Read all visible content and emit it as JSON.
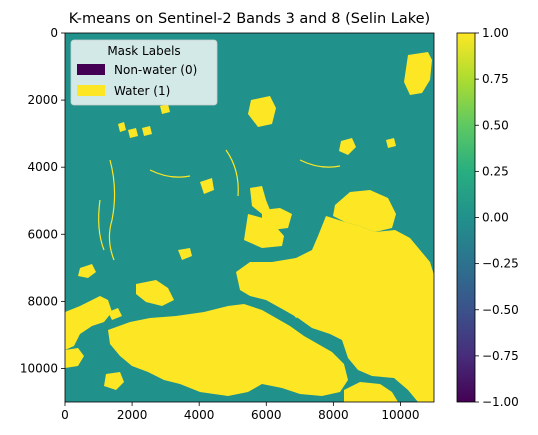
{
  "chart_data": {
    "type": "heatmap",
    "title": "K-means on Sentinel-2 Bands 3 and 8 (Selin Lake)",
    "xlabel": "",
    "ylabel": "",
    "xlim": [
      0,
      11000
    ],
    "ylim": [
      11000,
      0
    ],
    "x_ticks": [
      0,
      2000,
      4000,
      6000,
      8000,
      10000
    ],
    "y_ticks": [
      0,
      2000,
      4000,
      6000,
      8000,
      10000
    ],
    "colormap": "viridis",
    "background_class_value": 0,
    "colorbar": {
      "vmin": -1.0,
      "vmax": 1.0,
      "ticks": [
        1.0,
        0.75,
        0.5,
        0.25,
        0.0,
        -0.25,
        -0.5,
        -0.75,
        -1.0
      ],
      "tick_labels": [
        "1.00",
        "0.75",
        "0.50",
        "0.25",
        "0.00",
        "−0.25",
        "−0.50",
        "−0.75",
        "−1.00"
      ]
    },
    "legend": {
      "title": "Mask Labels",
      "placement": "upper-left",
      "entries": [
        {
          "label": "Non-water (0)",
          "color": "#440154"
        },
        {
          "label": "Water (1)",
          "color": "#fde725"
        }
      ]
    },
    "colors": {
      "non_water_display": "#21918c",
      "water": "#fde725",
      "cmap_low": "#440154",
      "cmap_high": "#fde725"
    }
  }
}
